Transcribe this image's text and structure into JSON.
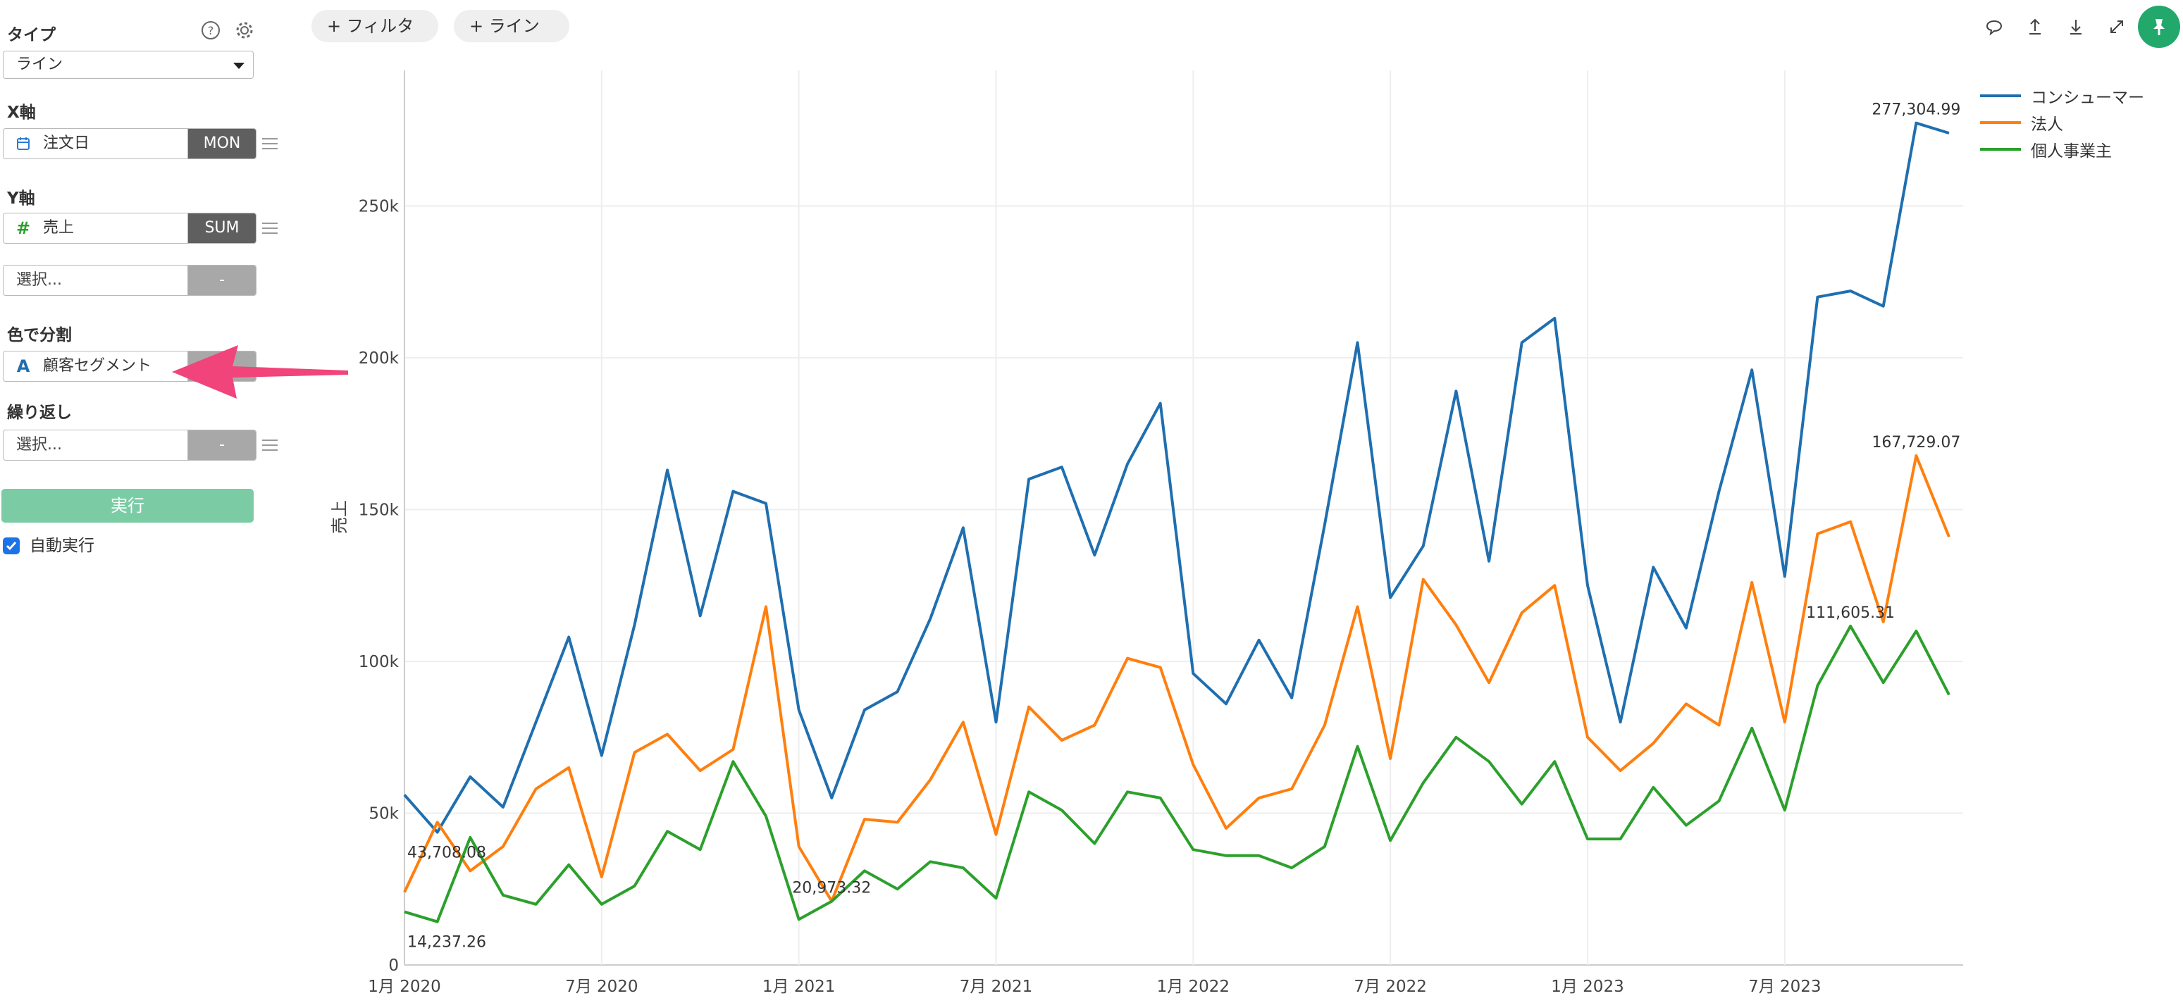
{
  "sidebar": {
    "type_label": "タイプ",
    "type_value": "ライン",
    "x_axis_label": "X軸",
    "x_field": "注文日",
    "x_agg": "MON",
    "y_axis_label": "Y軸",
    "y_field": "売上",
    "y_agg": "SUM",
    "y2_placeholder": "選択...",
    "y2_agg": "-",
    "color_label": "色で分割",
    "color_field": "顧客セグメント",
    "repeat_label": "繰り返し",
    "repeat_placeholder": "選択...",
    "repeat_agg": "-",
    "run_label": "実行",
    "auto_run_label": "自動実行",
    "auto_run_checked": true
  },
  "toolbar": {
    "filter_button": "+ フィルタ",
    "line_button": "+ ライン",
    "icons": [
      "comment-icon",
      "upload-icon",
      "download-icon",
      "expand-icon",
      "pin-icon"
    ]
  },
  "colors": {
    "consumer": "#1f6fb0",
    "corporate": "#ff7f0e",
    "home_office": "#2ca02c",
    "arrow": "#f0447a",
    "run_button": "#7bcca4",
    "pin": "#23a86c"
  },
  "chart_data": {
    "type": "line",
    "ylabel": "売上",
    "xlabel": "",
    "ylim": [
      0,
      290000
    ],
    "grid": true,
    "legend_position": "top-right",
    "x_ticks": [
      "1月 2020",
      "7月 2020",
      "1月 2021",
      "7月 2021",
      "1月 2022",
      "7月 2022",
      "1月 2023",
      "7月 2023"
    ],
    "y_ticks": [
      "0",
      "50k",
      "100k",
      "150k",
      "200k",
      "250k"
    ],
    "y_tick_values": [
      0,
      50000,
      100000,
      150000,
      200000,
      250000
    ],
    "x": [
      "2020-01",
      "2020-02",
      "2020-03",
      "2020-04",
      "2020-05",
      "2020-06",
      "2020-07",
      "2020-08",
      "2020-09",
      "2020-10",
      "2020-11",
      "2020-12",
      "2021-01",
      "2021-02",
      "2021-03",
      "2021-04",
      "2021-05",
      "2021-06",
      "2021-07",
      "2021-08",
      "2021-09",
      "2021-10",
      "2021-11",
      "2021-12",
      "2022-01",
      "2022-02",
      "2022-03",
      "2022-04",
      "2022-05",
      "2022-06",
      "2022-07",
      "2022-08",
      "2022-09",
      "2022-10",
      "2022-11",
      "2022-12",
      "2023-01",
      "2023-02",
      "2023-03",
      "2023-04",
      "2023-05",
      "2023-06",
      "2023-07",
      "2023-08",
      "2023-09",
      "2023-10",
      "2023-11",
      "2023-12"
    ],
    "series": [
      {
        "name": "コンシューマー",
        "color": "#1f6fb0",
        "values": [
          56000,
          43708.08,
          62000,
          52000,
          80000,
          108000,
          69000,
          112000,
          163000,
          115000,
          156000,
          152000,
          84000,
          55000,
          84000,
          90000,
          114000,
          144000,
          80000,
          160000,
          164000,
          135000,
          165000,
          185000,
          96000,
          86000,
          107000,
          88000,
          145000,
          205000,
          121000,
          138000,
          189000,
          133000,
          205000,
          213000,
          125000,
          80000,
          131000,
          111000,
          156000,
          196000,
          128000,
          220000,
          222000,
          217000,
          277304.99,
          274000
        ]
      },
      {
        "name": "法人",
        "color": "#ff7f0e",
        "values": [
          24000,
          47000,
          31000,
          39000,
          58000,
          65000,
          29000,
          70000,
          76000,
          64000,
          71000,
          118000,
          39000,
          21000,
          48000,
          47000,
          61000,
          80000,
          43000,
          85000,
          74000,
          79000,
          101000,
          98000,
          66000,
          45000,
          55000,
          58000,
          79000,
          118000,
          68000,
          127000,
          112000,
          93000,
          116000,
          125000,
          75000,
          64000,
          73000,
          86000,
          79000,
          126000,
          80000,
          142000,
          146000,
          113000,
          167729.07,
          141000
        ]
      },
      {
        "name": "個人事業主",
        "color": "#2ca02c",
        "values": [
          17500,
          14237.26,
          42000,
          23000,
          20000,
          33000,
          20000,
          26000,
          44000,
          38000,
          67000,
          49000,
          15000,
          20973.32,
          31000,
          25000,
          34000,
          32000,
          22000,
          57000,
          51000,
          40000,
          57000,
          55000,
          38000,
          36000,
          36000,
          32000,
          39000,
          72000,
          41000,
          60000,
          75000,
          67000,
          53000,
          67000,
          41500,
          41500,
          58500,
          46000,
          54000,
          78000,
          51000,
          92000,
          111605.31,
          93000,
          110000,
          89000
        ]
      }
    ],
    "data_labels": [
      {
        "series": "コンシューマー",
        "index": 1,
        "text": "43,708.08"
      },
      {
        "series": "コンシューマー",
        "index": 46,
        "text": "277,304.99"
      },
      {
        "series": "法人",
        "index": 46,
        "text": "167,729.07"
      },
      {
        "series": "個人事業主",
        "index": 1,
        "text": "14,237.26"
      },
      {
        "series": "個人事業主",
        "index": 13,
        "text": "20,973.32"
      },
      {
        "series": "個人事業主",
        "index": 44,
        "text": "111,605.31"
      }
    ]
  }
}
